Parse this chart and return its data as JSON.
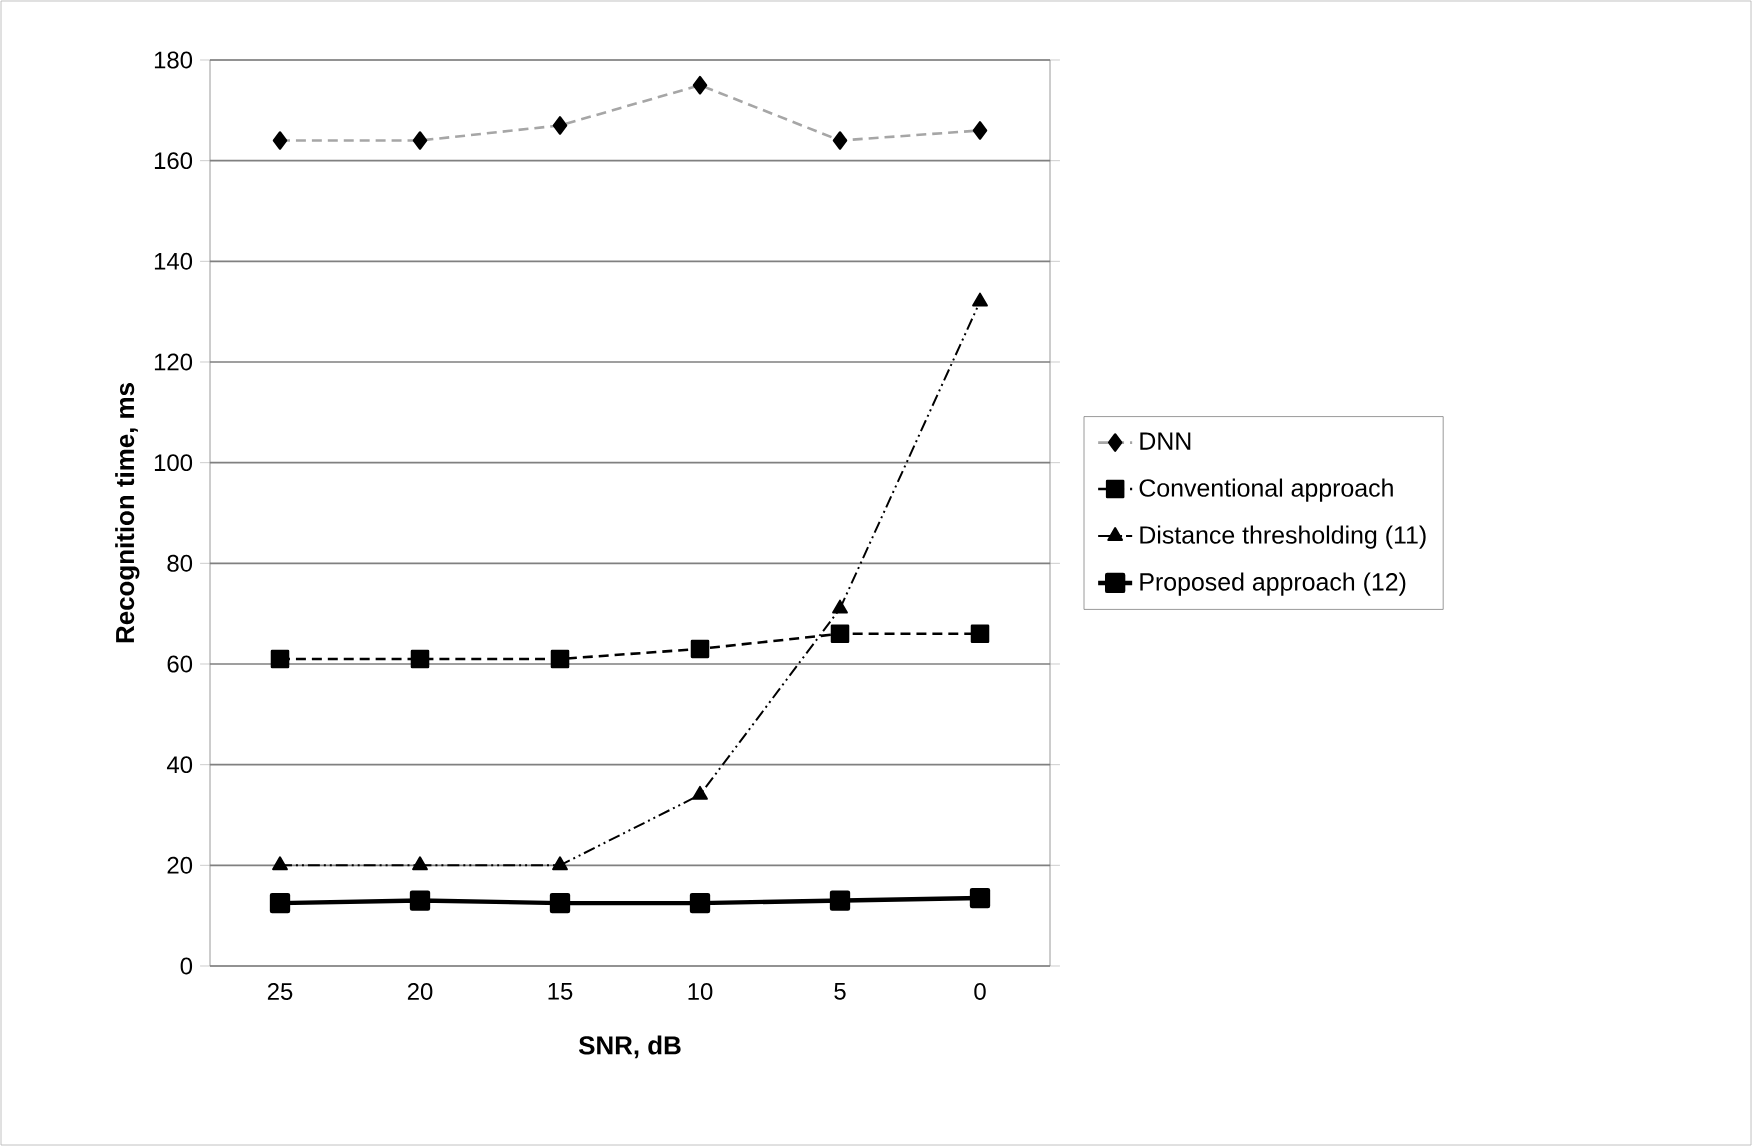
{
  "chart_data": {
    "type": "line",
    "xlabel": "SNR, dB",
    "ylabel": "Recognition time, ms",
    "categories": [
      "25",
      "20",
      "15",
      "10",
      "5",
      "0"
    ],
    "series": [
      {
        "name": "DNN",
        "color": "#a6a6a6",
        "marker": "diamond",
        "line_style": "dashed",
        "values": [
          164,
          164,
          167,
          175,
          164,
          166
        ]
      },
      {
        "name": "Conventional approach",
        "color": "#000000",
        "marker": "square",
        "line_style": "dashed",
        "values": [
          61,
          61,
          61,
          63,
          66,
          66
        ]
      },
      {
        "name": "Distance thresholding (11)",
        "color": "#000000",
        "marker": "triangle",
        "line_style": "dotted",
        "values": [
          20,
          20,
          20,
          34,
          71,
          132
        ]
      },
      {
        "name": "Proposed approach (12)",
        "color": "#000000",
        "marker": "square",
        "line_style": "solid",
        "values": [
          12.5,
          13,
          12.5,
          12.5,
          13,
          13.5
        ]
      }
    ],
    "ylim": [
      0,
      180
    ],
    "yticks": [
      0,
      20,
      40,
      60,
      80,
      100,
      120,
      140,
      160,
      180
    ],
    "grid": "y",
    "legend": "right"
  }
}
